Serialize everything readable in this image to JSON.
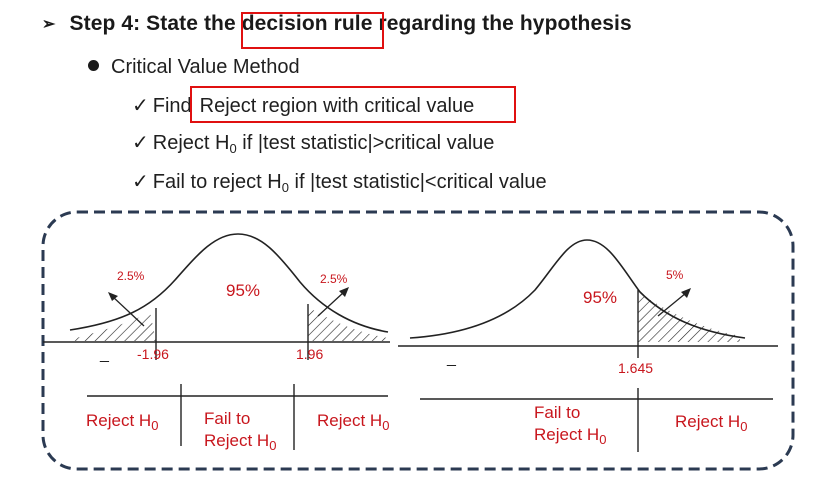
{
  "heading": {
    "prefix": "Step 4: State the ",
    "highlight": "decision rule",
    "suffix": " regarding the hypothesis"
  },
  "method": "Critical Value Method",
  "checks": {
    "find_prefix": "Find",
    "find_highlight": "Reject region with critical value",
    "reject_a": "Reject H",
    "reject_b": " if |test statistic|>critical value",
    "fail_a": "Fail to reject H",
    "fail_b": " if |test statistic|<critical value",
    "sub0": "0"
  },
  "left_chart": {
    "tail_left": "2.5%",
    "tail_right": "2.5%",
    "center": "95%",
    "crit_left": "-1.96",
    "crit_right": "1.96",
    "dash": "_",
    "reject_left": "Reject H",
    "fail_line1": "Fail to",
    "fail_line2": "Reject H",
    "reject_right": "Reject H",
    "sub": "0"
  },
  "right_chart": {
    "tail": "5%",
    "center": "95%",
    "crit": "1.645",
    "dash": "_",
    "fail_line1": "Fail to",
    "fail_line2": "Reject H",
    "reject": "Reject H",
    "sub": "0"
  },
  "colors": {
    "accent_red": "#c8161d",
    "box_red": "#e01010",
    "dashed_border": "#2b3a52"
  },
  "icons": [
    "arrow-bullet-icon",
    "dot-bullet-icon",
    "checkmark-icon"
  ]
}
